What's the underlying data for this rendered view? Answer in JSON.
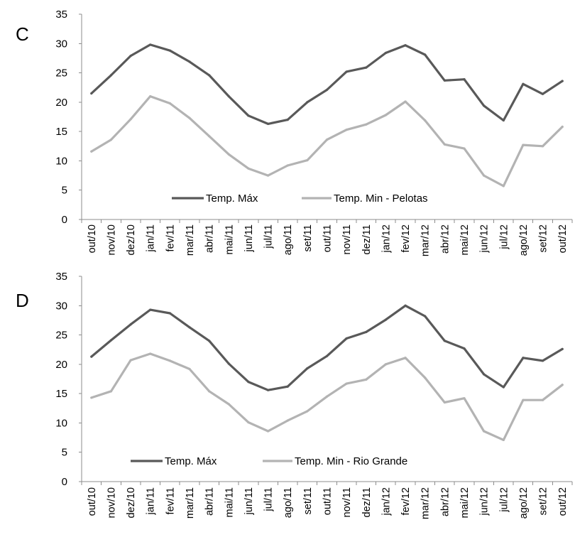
{
  "chart_data": [
    {
      "type": "line",
      "panel_label": "C",
      "title": "",
      "xlabel": "",
      "ylabel": "",
      "categories": [
        "out/10",
        "nov/10",
        "dez/10",
        "jan/11",
        "fev/11",
        "mar/11",
        "abr/11",
        "mai/11",
        "jun/11",
        "jul/11",
        "ago/11",
        "set/11",
        "out/11",
        "nov/11",
        "dez/11",
        "jan/12",
        "fev/12",
        "mar/12",
        "abr/12",
        "mai/12",
        "jun/12",
        "jul/12",
        "ago/12",
        "set/12",
        "out/12"
      ],
      "ylim": [
        0,
        35
      ],
      "yticks": [
        0,
        5,
        10,
        15,
        20,
        25,
        30,
        35
      ],
      "grid": false,
      "legend_position": "bottom-center",
      "series": [
        {
          "name": "Temp. Máx",
          "color": "#595959",
          "values": [
            21.5,
            24.6,
            27.9,
            29.8,
            28.8,
            26.9,
            24.6,
            21.0,
            17.7,
            16.3,
            17.0,
            20.0,
            22.1,
            25.2,
            25.9,
            28.4,
            29.7,
            28.1,
            23.7,
            23.9,
            19.4,
            16.9,
            23.1,
            21.4,
            23.6
          ]
        },
        {
          "name": "Temp. Min - Pelotas",
          "color": "#b3b3b3",
          "values": [
            11.6,
            13.6,
            17.1,
            21.0,
            19.8,
            17.3,
            14.2,
            11.1,
            8.7,
            7.5,
            9.2,
            10.1,
            13.6,
            15.3,
            16.2,
            17.8,
            20.1,
            16.9,
            12.8,
            12.1,
            7.5,
            5.7,
            12.7,
            12.5,
            15.8
          ]
        }
      ]
    },
    {
      "type": "line",
      "panel_label": "D",
      "title": "",
      "xlabel": "",
      "ylabel": "",
      "categories": [
        "out/10",
        "nov/10",
        "dez/10",
        "jan/11",
        "fev/11",
        "mar/11",
        "abr/11",
        "mai/11",
        "jun/11",
        "jul/11",
        "ago/11",
        "set/11",
        "out/11",
        "nov/11",
        "dez/11",
        "jan/12",
        "fev/12",
        "mar/12",
        "abr/12",
        "mai/12",
        "jun/12",
        "jul/12",
        "ago/12",
        "set/12",
        "out/12"
      ],
      "ylim": [
        0,
        35
      ],
      "yticks": [
        0,
        5,
        10,
        15,
        20,
        25,
        30,
        35
      ],
      "grid": false,
      "legend_position": "bottom-center",
      "series": [
        {
          "name": "Temp. Máx",
          "color": "#595959",
          "values": [
            21.3,
            24.1,
            26.8,
            29.3,
            28.7,
            26.3,
            24.0,
            20.1,
            17.0,
            15.6,
            16.2,
            19.3,
            21.4,
            24.4,
            25.5,
            27.6,
            30.0,
            28.2,
            24.0,
            22.7,
            18.3,
            16.1,
            21.1,
            20.6,
            22.6
          ]
        },
        {
          "name": "Temp. Min - Rio Grande",
          "color": "#b3b3b3",
          "values": [
            14.3,
            15.4,
            20.7,
            21.8,
            20.6,
            19.2,
            15.4,
            13.2,
            10.1,
            8.6,
            10.4,
            12.0,
            14.5,
            16.7,
            17.4,
            20.0,
            21.1,
            17.7,
            13.5,
            14.2,
            8.6,
            7.1,
            13.9,
            13.9,
            16.5
          ]
        }
      ]
    }
  ]
}
